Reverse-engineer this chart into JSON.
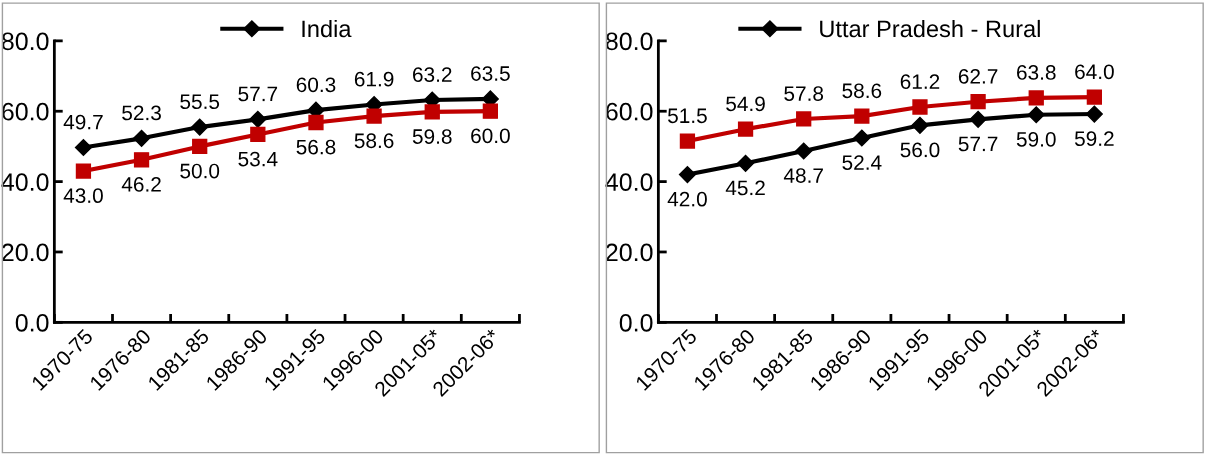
{
  "chart_data": [
    {
      "type": "line",
      "categories": [
        "1970-75",
        "1976-80",
        "1981-85",
        "1986-90",
        "1991-95",
        "1996-00",
        "2001-05*",
        "2002-06*"
      ],
      "series": [
        {
          "name": "India",
          "color": "#000000",
          "marker": "diamond",
          "values": [
            49.7,
            52.3,
            55.5,
            57.7,
            60.3,
            61.9,
            63.2,
            63.5
          ],
          "value_labels": [
            "49.7",
            "52.3",
            "55.5",
            "57.7",
            "60.3",
            "61.9",
            "63.2",
            "63.5"
          ]
        },
        {
          "color": "#c00000",
          "marker": "square",
          "values": [
            43.0,
            46.2,
            50.0,
            53.4,
            56.8,
            58.6,
            59.8,
            60.0
          ],
          "value_labels": [
            "43.0",
            "46.2",
            "50.0",
            "53.4",
            "56.8",
            "58.6",
            "59.8",
            "60.0"
          ]
        }
      ],
      "ylim": [
        0,
        80
      ],
      "yticks": [
        {
          "value": 0,
          "label": "0.0"
        },
        {
          "value": 20,
          "label": "20.0"
        },
        {
          "value": 40,
          "label": "40.0"
        },
        {
          "value": 60,
          "label": "60.0"
        },
        {
          "value": 80,
          "label": "80.0"
        }
      ],
      "grid": false,
      "legend": "top"
    },
    {
      "type": "line",
      "categories": [
        "1970-75",
        "1976-80",
        "1981-85",
        "1986-90",
        "1991-95",
        "1996-00",
        "2001-05*",
        "2002-06*"
      ],
      "series": [
        {
          "name": "Uttar Pradesh - Rural",
          "color": "#000000",
          "marker": "diamond",
          "values": [
            42.0,
            45.2,
            48.7,
            52.4,
            56.0,
            57.7,
            59.0,
            59.2
          ],
          "value_labels": [
            "42.0",
            "45.2",
            "48.7",
            "52.4",
            "56.0",
            "57.7",
            "59.0",
            "59.2"
          ]
        },
        {
          "color": "#c00000",
          "marker": "square",
          "values": [
            51.5,
            54.9,
            57.8,
            58.6,
            61.2,
            62.7,
            63.8,
            64.0
          ],
          "value_labels": [
            "51.5",
            "54.9",
            "57.8",
            "58.6",
            "61.2",
            "62.7",
            "63.8",
            "64.0"
          ]
        }
      ],
      "ylim": [
        0,
        80
      ],
      "yticks": [
        {
          "value": 0,
          "label": "0.0"
        },
        {
          "value": 20,
          "label": "20.0"
        },
        {
          "value": 40,
          "label": "40.0"
        },
        {
          "value": 60,
          "label": "60.0"
        },
        {
          "value": 80,
          "label": "80.0"
        }
      ],
      "grid": false,
      "legend": "top"
    }
  ]
}
